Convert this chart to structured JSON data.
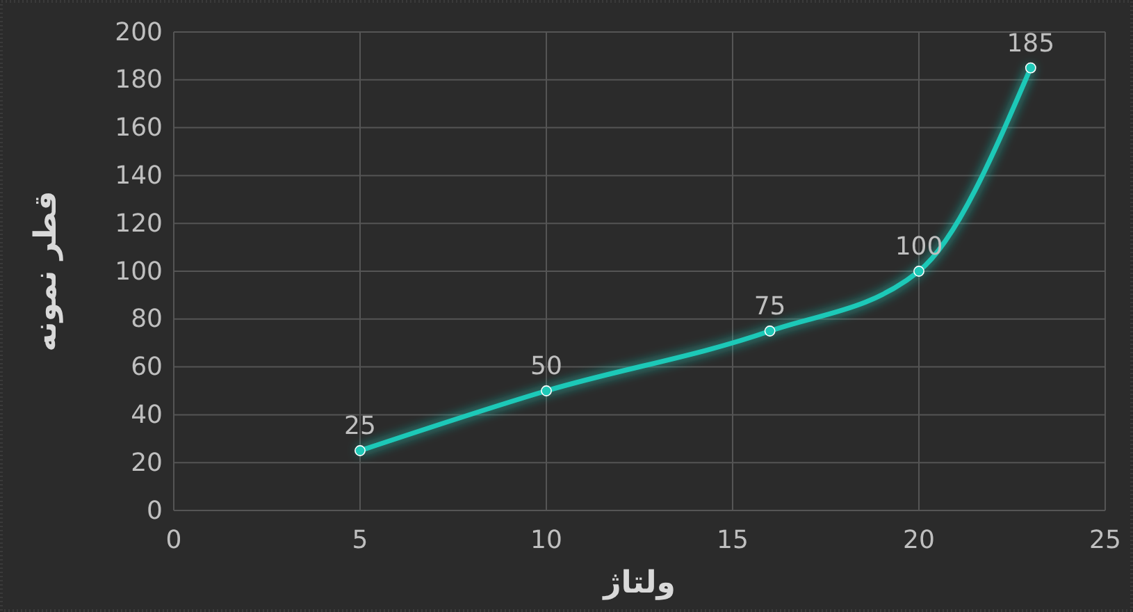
{
  "chart_data": {
    "type": "line",
    "xlabel": "ولتاژ",
    "ylabel": "قطر نمونه",
    "x": [
      5,
      10,
      16,
      20,
      23
    ],
    "series": [
      {
        "color": "#1fc9b8",
        "values": [
          25,
          50,
          75,
          100,
          185
        ]
      }
    ],
    "xlim": [
      0,
      25
    ],
    "xticks": [
      0,
      5,
      10,
      15,
      20,
      25
    ],
    "ylim": [
      0,
      200
    ],
    "yticks": [
      0,
      20,
      40,
      60,
      80,
      100,
      120,
      140,
      160,
      180,
      200
    ],
    "grid": true,
    "marker": "circle",
    "line_style": "solid",
    "data_labels": true
  }
}
